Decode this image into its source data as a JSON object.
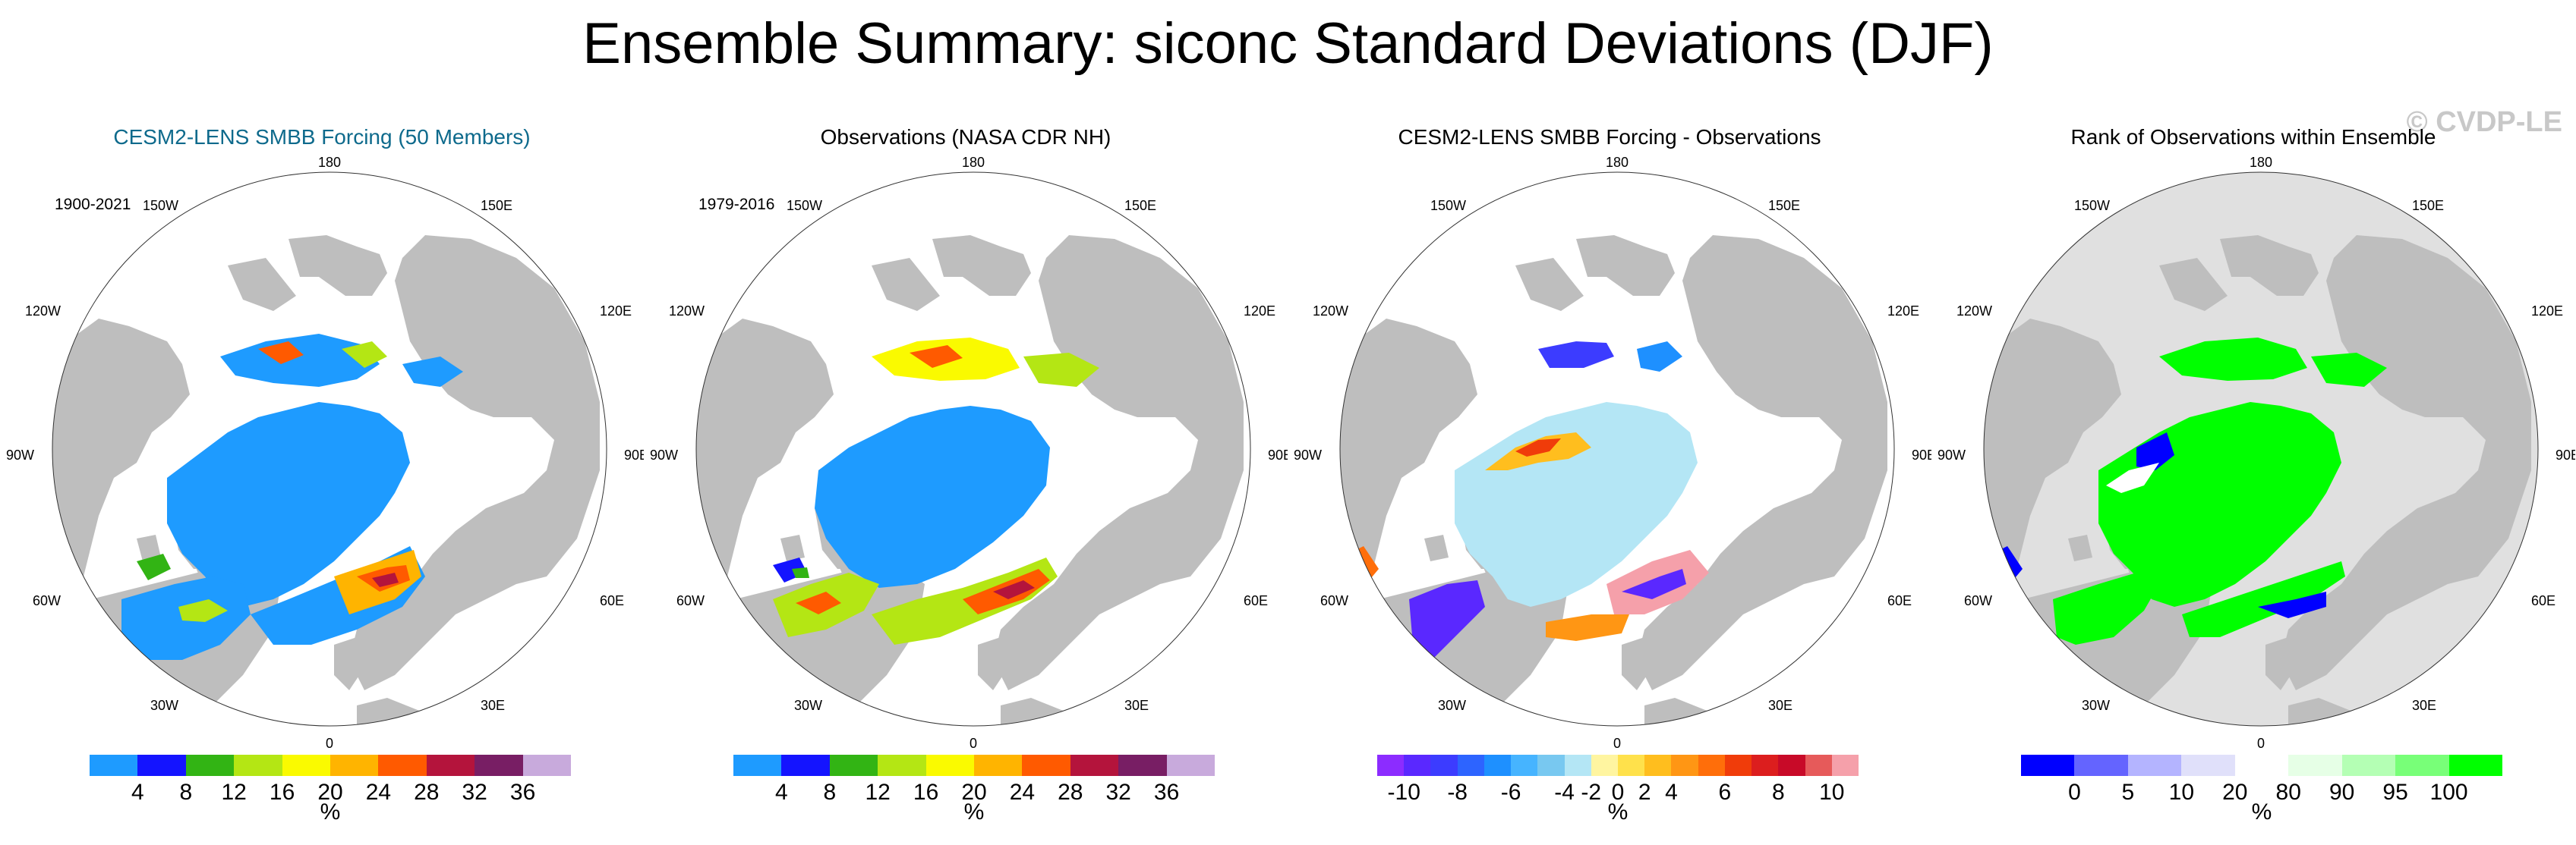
{
  "title": "Ensemble Summary: siconc Standard Deviations (DJF)",
  "watermark": "© CVDP-LE",
  "geo_labels": [
    "180",
    "150W",
    "150E",
    "120W",
    "120E",
    "90W",
    "90E",
    "60W",
    "60E",
    "30W",
    "30E",
    "0"
  ],
  "colors": {
    "land": "#bebebe",
    "ocean": "#ffffff",
    "noice_rank": "#e0e0e0"
  },
  "panels": [
    {
      "title": "CESM2-LENS SMBB Forcing (50 Members)",
      "period": "1900-2021",
      "colorbar": {
        "colors": [
          "#1e9bff",
          "#1414ff",
          "#32b414",
          "#b4e614",
          "#fafa00",
          "#ffb400",
          "#ff5a00",
          "#b4143c",
          "#781e64",
          "#c8aadc"
        ],
        "ticks": [
          "4",
          "8",
          "12",
          "16",
          "20",
          "24",
          "28",
          "32",
          "36"
        ],
        "unit": "%"
      }
    },
    {
      "title": "Observations (NASA CDR NH)",
      "period": "1979-2016",
      "colorbar": {
        "colors": [
          "#1e9bff",
          "#1414ff",
          "#32b414",
          "#b4e614",
          "#fafa00",
          "#ffb400",
          "#ff5a00",
          "#b4143c",
          "#781e64",
          "#c8aadc"
        ],
        "ticks": [
          "4",
          "8",
          "12",
          "16",
          "20",
          "24",
          "28",
          "32",
          "36"
        ],
        "unit": "%"
      }
    },
    {
      "title": "CESM2-LENS SMBB Forcing - Observations",
      "period": "",
      "colorbar": {
        "colors": [
          "#8c2cff",
          "#5a28ff",
          "#3c3cff",
          "#2d64ff",
          "#1e90ff",
          "#46b4ff",
          "#78c8f0",
          "#b4e6f5",
          "#fff5a0",
          "#ffe14b",
          "#ffbe1e",
          "#ff9614",
          "#ff6e0a",
          "#f03c0a",
          "#dc1e1e",
          "#c80a28",
          "#e65a5a",
          "#f5a0aa"
        ],
        "ticks": [
          "-10",
          "-8",
          "-6",
          "-4",
          "-2",
          "0",
          "2",
          "4",
          "6",
          "8",
          "10"
        ],
        "unit": "%"
      }
    },
    {
      "title": "Rank of Observations within Ensemble",
      "period": "",
      "colorbar": {
        "colors": [
          "#0000ff",
          "#6464ff",
          "#b4b4ff",
          "#e0e0fa",
          "#ffffff",
          "#e6ffe6",
          "#b4ffb4",
          "#78ff78",
          "#00ff00"
        ],
        "ticks": [
          "0",
          "5",
          "10",
          "20",
          "80",
          "90",
          "95",
          "100"
        ],
        "unit": "%"
      }
    }
  ]
}
